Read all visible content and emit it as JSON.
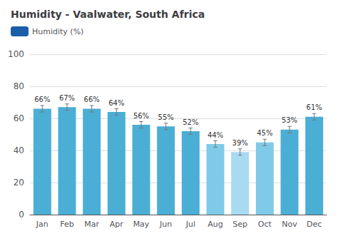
{
  "chart_data": {
    "type": "bar",
    "title": "Humidity - Vaalwater, South Africa",
    "categories": [
      "Jan",
      "Feb",
      "Mar",
      "Apr",
      "May",
      "Jun",
      "Jul",
      "Aug",
      "Sep",
      "Oct",
      "Nov",
      "Dec"
    ],
    "series": [
      {
        "name": "Humidity (%)",
        "color": "#1a5fa8",
        "colors": [
          "#4baed4",
          "#4baed4",
          "#4baed4",
          "#4baed4",
          "#4baed4",
          "#4baed4",
          "#4baed4",
          "#7ecae8",
          "#a8daf2",
          "#7ecae8",
          "#4baed4",
          "#4baed4"
        ],
        "values": [
          66,
          67,
          66,
          64,
          56,
          55,
          52,
          44,
          39,
          45,
          53,
          61
        ],
        "value_labels": [
          "66%",
          "67%",
          "66%",
          "64%",
          "56%",
          "55%",
          "52%",
          "44%",
          "39%",
          "45%",
          "53%",
          "61%"
        ],
        "errors": [
          2,
          2,
          2,
          2,
          2,
          2,
          2,
          2,
          2,
          2,
          2,
          2
        ]
      }
    ],
    "ylim": [
      0,
      100
    ],
    "yticks": [
      0,
      20,
      40,
      60,
      80,
      100
    ],
    "grid": true,
    "legend": "upper left",
    "data_labels": true
  }
}
